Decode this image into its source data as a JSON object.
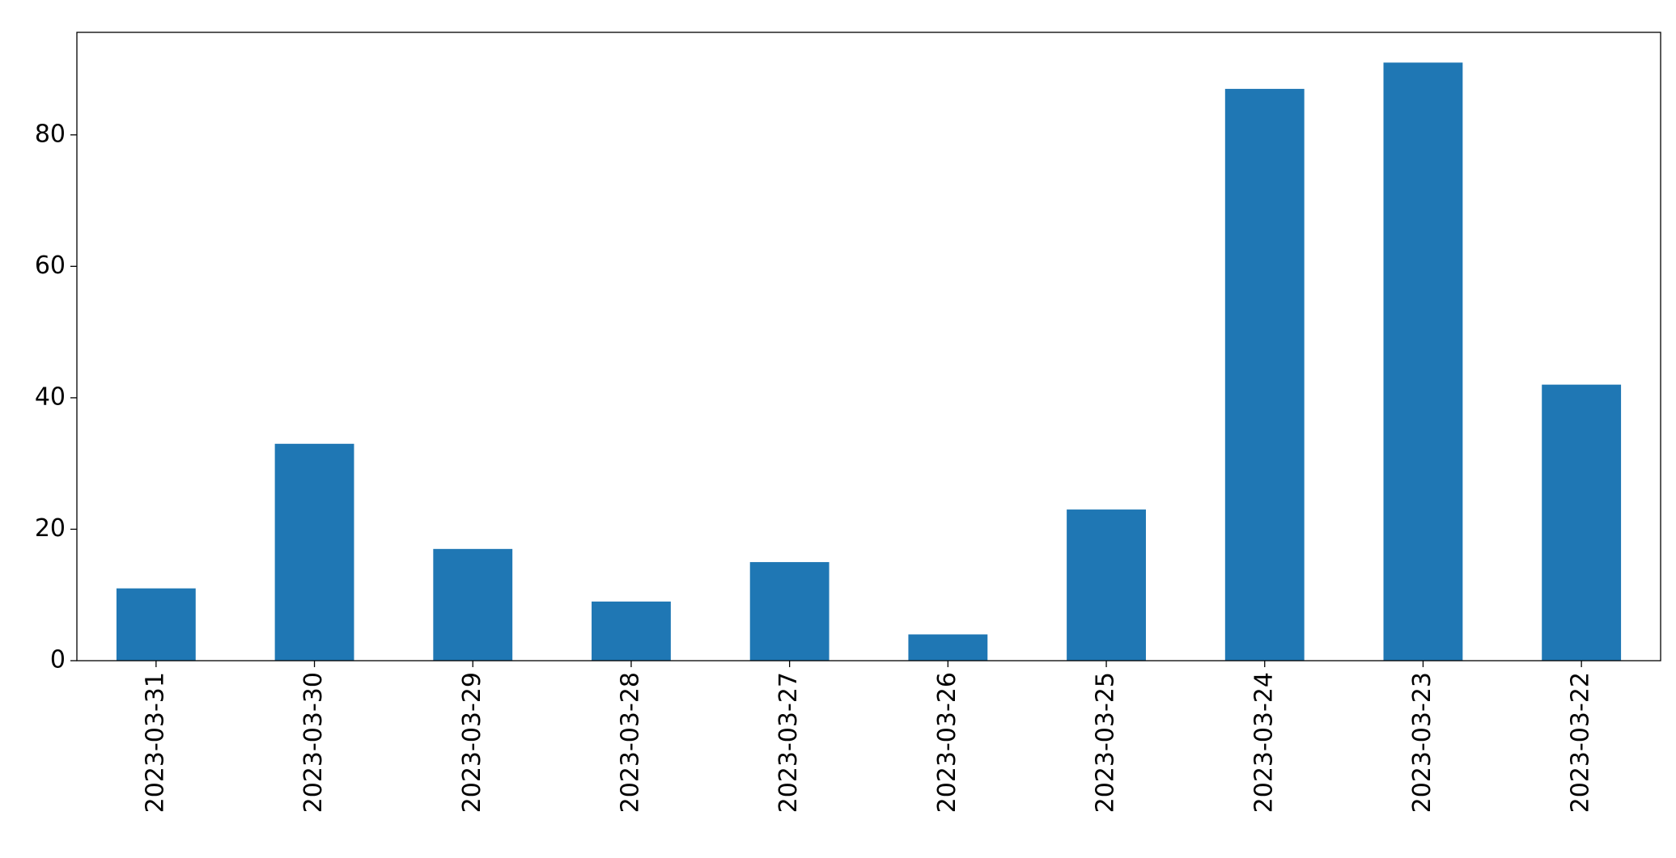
{
  "chart_data": {
    "type": "bar",
    "categories": [
      "2023-03-31",
      "2023-03-30",
      "2023-03-29",
      "2023-03-28",
      "2023-03-27",
      "2023-03-26",
      "2023-03-25",
      "2023-03-24",
      "2023-03-23",
      "2023-03-22"
    ],
    "values": [
      11,
      33,
      17,
      9,
      15,
      4,
      23,
      87,
      91,
      42
    ],
    "color": "#1f77b4",
    "ylim": [
      0,
      95.6
    ],
    "yticks": [
      0,
      20,
      40,
      60,
      80
    ],
    "grid": false
  }
}
